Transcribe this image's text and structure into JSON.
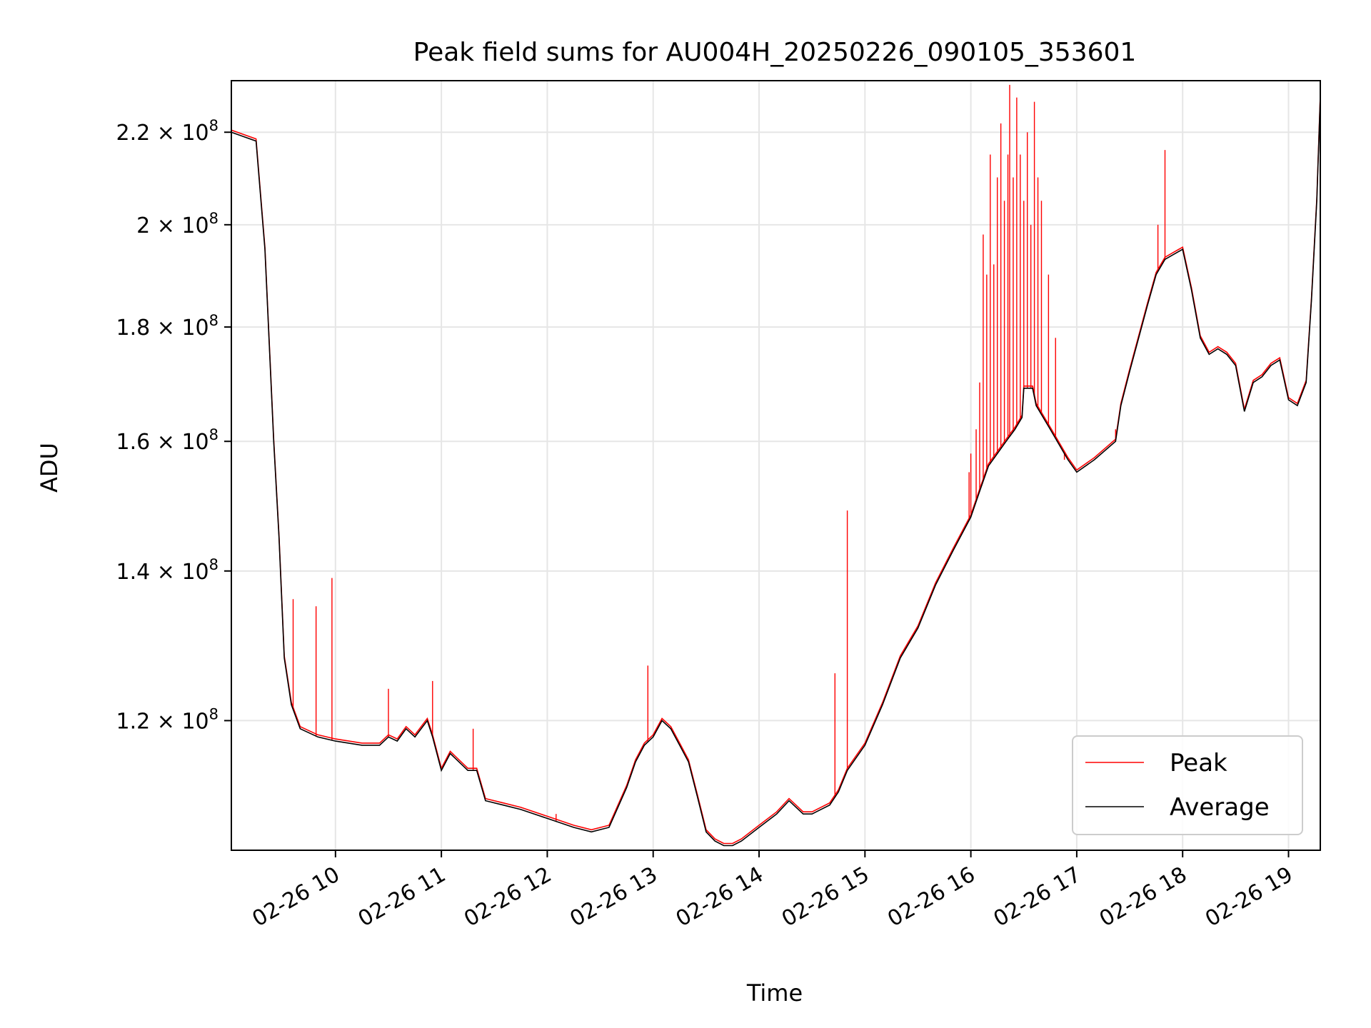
{
  "chart_data": {
    "type": "line",
    "title": "Peak field sums for AU004H_20250226_090105_353601",
    "xlabel": "Time",
    "ylabel": "ADU",
    "y_scale": "log",
    "ylim": [
      105000000.0,
      232000000.0
    ],
    "xlim": [
      "2025-02-26 09:01",
      "2025-02-26 19:18"
    ],
    "grid": true,
    "legend_position": "lower-right",
    "x_ticks": [
      "02-26 10",
      "02-26 11",
      "02-26 12",
      "02-26 13",
      "02-26 14",
      "02-26 15",
      "02-26 16",
      "02-26 17",
      "02-26 18",
      "02-26 19"
    ],
    "y_ticks": [
      {
        "value": 120000000.0,
        "mantissa": "1.2",
        "exp": "8"
      },
      {
        "value": 140000000.0,
        "mantissa": "1.4",
        "exp": "8"
      },
      {
        "value": 160000000.0,
        "mantissa": "1.6",
        "exp": "8"
      },
      {
        "value": 180000000.0,
        "mantissa": "1.8",
        "exp": "8"
      },
      {
        "value": 200000000.0,
        "mantissa": "2",
        "exp": "8"
      },
      {
        "value": 220000000.0,
        "mantissa": "2.2",
        "exp": "8"
      }
    ],
    "series": [
      {
        "name": "Average",
        "color": "#000000",
        "points": [
          [
            "09:01",
            220000000.0
          ],
          [
            "09:15",
            218000000.0
          ],
          [
            "09:20",
            195000000.0
          ],
          [
            "09:25",
            160000000.0
          ],
          [
            "09:28",
            145000000.0
          ],
          [
            "09:31",
            128000000.0
          ],
          [
            "09:35",
            122000000.0
          ],
          [
            "09:40",
            119000000.0
          ],
          [
            "09:50",
            118000000.0
          ],
          [
            "10:00",
            117500000.0
          ],
          [
            "10:15",
            117000000.0
          ],
          [
            "10:25",
            117000000.0
          ],
          [
            "10:30",
            118000000.0
          ],
          [
            "10:35",
            117500000.0
          ],
          [
            "10:40",
            119000000.0
          ],
          [
            "10:45",
            118000000.0
          ],
          [
            "10:52",
            120000000.0
          ],
          [
            "10:55",
            118000000.0
          ],
          [
            "11:00",
            114000000.0
          ],
          [
            "11:05",
            116000000.0
          ],
          [
            "11:15",
            114000000.0
          ],
          [
            "11:20",
            114000000.0
          ],
          [
            "11:25",
            110500000.0
          ],
          [
            "11:35",
            110000000.0
          ],
          [
            "11:45",
            109500000.0
          ],
          [
            "12:00",
            108500000.0
          ],
          [
            "12:15",
            107500000.0
          ],
          [
            "12:25",
            107000000.0
          ],
          [
            "12:35",
            107500000.0
          ],
          [
            "12:45",
            112000000.0
          ],
          [
            "12:50",
            115000000.0
          ],
          [
            "12:55",
            117000000.0
          ],
          [
            "13:00",
            118000000.0
          ],
          [
            "13:05",
            120000000.0
          ],
          [
            "13:10",
            119000000.0
          ],
          [
            "13:15",
            117000000.0
          ],
          [
            "13:20",
            115000000.0
          ],
          [
            "13:25",
            111000000.0
          ],
          [
            "13:30",
            107000000.0
          ],
          [
            "13:35",
            106000000.0
          ],
          [
            "13:40",
            105500000.0
          ],
          [
            "13:45",
            105500000.0
          ],
          [
            "13:50",
            106000000.0
          ],
          [
            "14:00",
            107500000.0
          ],
          [
            "14:10",
            109000000.0
          ],
          [
            "14:17",
            110500000.0
          ],
          [
            "14:25",
            109000000.0
          ],
          [
            "14:30",
            109000000.0
          ],
          [
            "14:40",
            110000000.0
          ],
          [
            "14:45",
            111500000.0
          ],
          [
            "14:50",
            114000000.0
          ],
          [
            "15:00",
            117000000.0
          ],
          [
            "15:10",
            122000000.0
          ],
          [
            "15:20",
            128000000.0
          ],
          [
            "15:30",
            132000000.0
          ],
          [
            "15:40",
            138000000.0
          ],
          [
            "15:50",
            143000000.0
          ],
          [
            "16:00",
            148000000.0
          ],
          [
            "16:05",
            152000000.0
          ],
          [
            "16:10",
            156000000.0
          ],
          [
            "16:20",
            160000000.0
          ],
          [
            "16:25",
            162000000.0
          ],
          [
            "16:29",
            164000000.0
          ],
          [
            "16:30",
            169000000.0
          ],
          [
            "16:35",
            169000000.0
          ],
          [
            "16:37",
            166000000.0
          ],
          [
            "16:45",
            162000000.0
          ],
          [
            "16:55",
            157000000.0
          ],
          [
            "17:00",
            155000000.0
          ],
          [
            "17:10",
            157000000.0
          ],
          [
            "17:22",
            160000000.0
          ],
          [
            "17:25",
            166000000.0
          ],
          [
            "17:30",
            172000000.0
          ],
          [
            "17:40",
            184000000.0
          ],
          [
            "17:45",
            190000000.0
          ],
          [
            "17:50",
            193000000.0
          ],
          [
            "17:55",
            194000000.0
          ],
          [
            "18:00",
            195000000.0
          ],
          [
            "18:05",
            187000000.0
          ],
          [
            "18:10",
            178000000.0
          ],
          [
            "18:15",
            175000000.0
          ],
          [
            "18:20",
            176000000.0
          ],
          [
            "18:25",
            175000000.0
          ],
          [
            "18:30",
            173000000.0
          ],
          [
            "18:35",
            165000000.0
          ],
          [
            "18:40",
            170000000.0
          ],
          [
            "18:45",
            171000000.0
          ],
          [
            "18:50",
            173000000.0
          ],
          [
            "18:55",
            174000000.0
          ],
          [
            "19:00",
            167000000.0
          ],
          [
            "19:05",
            166000000.0
          ],
          [
            "19:10",
            170000000.0
          ],
          [
            "19:13",
            185000000.0
          ],
          [
            "19:16",
            205000000.0
          ],
          [
            "19:18",
            228000000.0
          ]
        ]
      },
      {
        "name": "Peak",
        "color": "#ff0000",
        "spikes": [
          [
            "09:36",
            136000000.0
          ],
          [
            "09:49",
            135000000.0
          ],
          [
            "09:58",
            139000000.0
          ],
          [
            "10:30",
            124000000.0
          ],
          [
            "10:55",
            125000000.0
          ],
          [
            "11:18",
            119000000.0
          ],
          [
            "12:05",
            109000000.0
          ],
          [
            "12:57",
            127000000.0
          ],
          [
            "14:43",
            126000000.0
          ],
          [
            "14:50",
            149000000.0
          ],
          [
            "15:59",
            155000000.0
          ],
          [
            "16:00",
            158000000.0
          ],
          [
            "16:03",
            162000000.0
          ],
          [
            "16:05",
            170000000.0
          ],
          [
            "16:07",
            198000000.0
          ],
          [
            "16:09",
            190000000.0
          ],
          [
            "16:11",
            215000000.0
          ],
          [
            "16:13",
            192000000.0
          ],
          [
            "16:15",
            210000000.0
          ],
          [
            "16:17",
            222000000.0
          ],
          [
            "16:19",
            205000000.0
          ],
          [
            "16:21",
            215000000.0
          ],
          [
            "16:22",
            231000000.0
          ],
          [
            "16:24",
            210000000.0
          ],
          [
            "16:26",
            228000000.0
          ],
          [
            "16:28",
            215000000.0
          ],
          [
            "16:30",
            205000000.0
          ],
          [
            "16:32",
            220000000.0
          ],
          [
            "16:34",
            200000000.0
          ],
          [
            "16:36",
            227000000.0
          ],
          [
            "16:38",
            210000000.0
          ],
          [
            "16:40",
            205000000.0
          ],
          [
            "16:44",
            190000000.0
          ],
          [
            "16:48",
            178000000.0
          ],
          [
            "16:53",
            157000000.0
          ],
          [
            "17:22",
            162000000.0
          ],
          [
            "17:46",
            200000000.0
          ],
          [
            "17:50",
            216000000.0
          ]
        ]
      }
    ]
  }
}
